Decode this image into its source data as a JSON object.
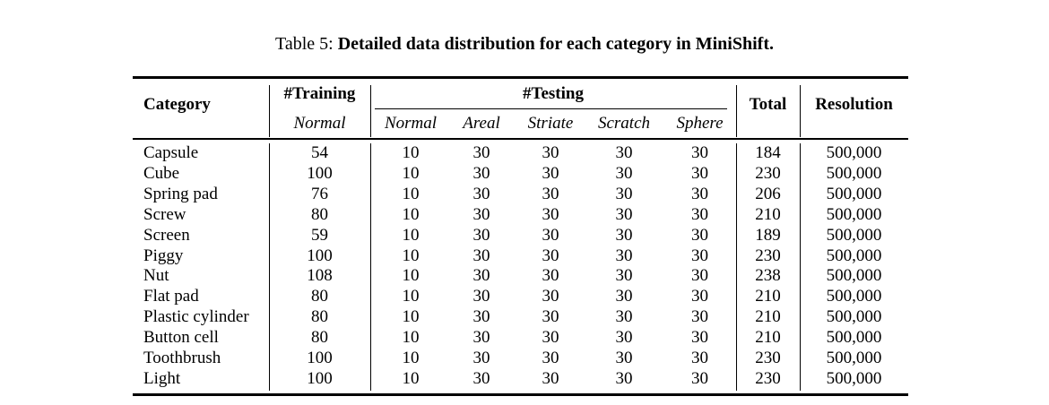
{
  "caption": {
    "label": "Table 5: ",
    "title": "Detailed data distribution for each category in MiniShift."
  },
  "header": {
    "category": "Category",
    "training": "#Training",
    "testing": "#Testing",
    "total": "Total",
    "resolution": "Resolution",
    "sub": [
      "Normal",
      "Normal",
      "Areal",
      "Striate",
      "Scratch",
      "Sphere"
    ]
  },
  "rows": [
    [
      "Capsule",
      "54",
      "10",
      "30",
      "30",
      "30",
      "30",
      "184",
      "500,000"
    ],
    [
      "Cube",
      "100",
      "10",
      "30",
      "30",
      "30",
      "30",
      "230",
      "500,000"
    ],
    [
      "Spring pad",
      "76",
      "10",
      "30",
      "30",
      "30",
      "30",
      "206",
      "500,000"
    ],
    [
      "Screw",
      "80",
      "10",
      "30",
      "30",
      "30",
      "30",
      "210",
      "500,000"
    ],
    [
      "Screen",
      "59",
      "10",
      "30",
      "30",
      "30",
      "30",
      "189",
      "500,000"
    ],
    [
      "Piggy",
      "100",
      "10",
      "30",
      "30",
      "30",
      "30",
      "230",
      "500,000"
    ],
    [
      "Nut",
      "108",
      "10",
      "30",
      "30",
      "30",
      "30",
      "238",
      "500,000"
    ],
    [
      "Flat pad",
      "80",
      "10",
      "30",
      "30",
      "30",
      "30",
      "210",
      "500,000"
    ],
    [
      "Plastic cylinder",
      "80",
      "10",
      "30",
      "30",
      "30",
      "30",
      "210",
      "500,000"
    ],
    [
      "Button cell",
      "80",
      "10",
      "30",
      "30",
      "30",
      "30",
      "210",
      "500,000"
    ],
    [
      "Toothbrush",
      "100",
      "10",
      "30",
      "30",
      "30",
      "30",
      "230",
      "500,000"
    ],
    [
      "Light",
      "100",
      "10",
      "30",
      "30",
      "30",
      "30",
      "230",
      "500,000"
    ]
  ]
}
